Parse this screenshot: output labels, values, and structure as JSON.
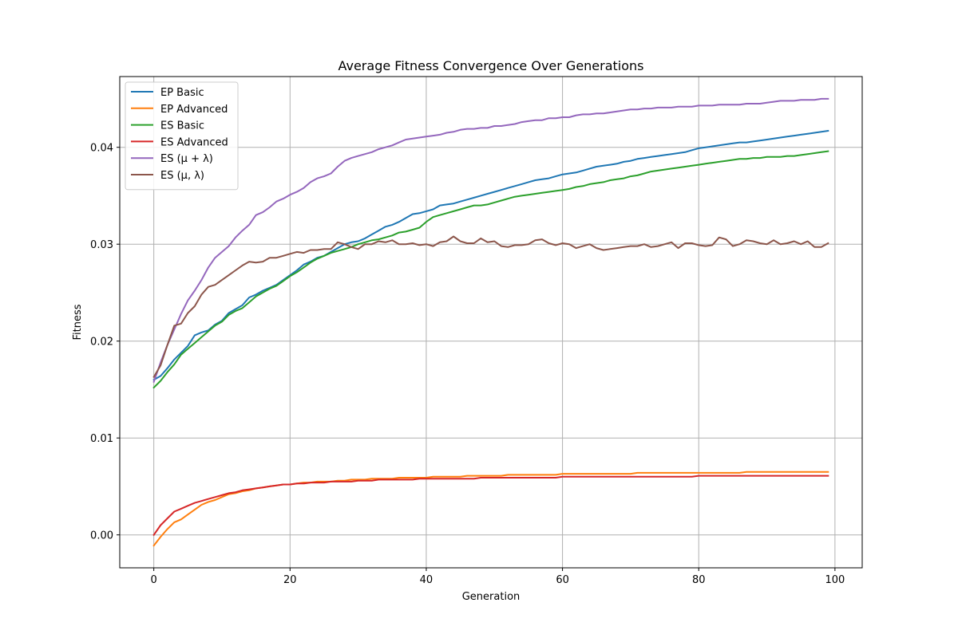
{
  "chart_data": {
    "type": "line",
    "title": "Average Fitness Convergence Over Generations",
    "xlabel": "Generation",
    "ylabel": "Fitness",
    "xlim": [
      -5,
      104
    ],
    "ylim": [
      -0.0034,
      0.0473
    ],
    "xticks": [
      0,
      20,
      40,
      60,
      80,
      100
    ],
    "xtick_labels": [
      "0",
      "20",
      "40",
      "60",
      "80",
      "100"
    ],
    "yticks": [
      0.0,
      0.01,
      0.02,
      0.03,
      0.04
    ],
    "ytick_labels": [
      "0.00",
      "0.01",
      "0.02",
      "0.03",
      "0.04"
    ],
    "grid": true,
    "legend_position": "top-left",
    "x": [
      0,
      1,
      2,
      3,
      4,
      5,
      6,
      7,
      8,
      9,
      10,
      11,
      12,
      13,
      14,
      15,
      16,
      17,
      18,
      19,
      20,
      21,
      22,
      23,
      24,
      25,
      26,
      27,
      28,
      29,
      30,
      31,
      32,
      33,
      34,
      35,
      36,
      37,
      38,
      39,
      40,
      41,
      42,
      43,
      44,
      45,
      46,
      47,
      48,
      49,
      50,
      51,
      52,
      53,
      54,
      55,
      56,
      57,
      58,
      59,
      60,
      61,
      62,
      63,
      64,
      65,
      66,
      67,
      68,
      69,
      70,
      71,
      72,
      73,
      74,
      75,
      76,
      77,
      78,
      79,
      80,
      81,
      82,
      83,
      84,
      85,
      86,
      87,
      88,
      89,
      90,
      91,
      92,
      93,
      94,
      95,
      96,
      97,
      98,
      99
    ],
    "series": [
      {
        "name": "EP Basic",
        "color": "#1f77b4",
        "values": [
          0.016,
          0.0164,
          0.0172,
          0.0181,
          0.0188,
          0.0195,
          0.0206,
          0.0209,
          0.0211,
          0.0217,
          0.0221,
          0.0229,
          0.0233,
          0.0237,
          0.0245,
          0.0248,
          0.0252,
          0.0255,
          0.0258,
          0.0263,
          0.0268,
          0.0273,
          0.0279,
          0.0282,
          0.0286,
          0.0288,
          0.0292,
          0.0296,
          0.03,
          0.0302,
          0.0303,
          0.0306,
          0.031,
          0.0314,
          0.0318,
          0.032,
          0.0323,
          0.0327,
          0.0331,
          0.0332,
          0.0334,
          0.0336,
          0.034,
          0.0341,
          0.0342,
          0.0344,
          0.0346,
          0.0348,
          0.035,
          0.0352,
          0.0354,
          0.0356,
          0.0358,
          0.036,
          0.0362,
          0.0364,
          0.0366,
          0.0367,
          0.0368,
          0.037,
          0.0372,
          0.0373,
          0.0374,
          0.0376,
          0.0378,
          0.038,
          0.0381,
          0.0382,
          0.0383,
          0.0385,
          0.0386,
          0.0388,
          0.0389,
          0.039,
          0.0391,
          0.0392,
          0.0393,
          0.0394,
          0.0395,
          0.0397,
          0.0399,
          0.04,
          0.0401,
          0.0402,
          0.0403,
          0.0404,
          0.0405,
          0.0405,
          0.0406,
          0.0407,
          0.0408,
          0.0409,
          0.041,
          0.0411,
          0.0412,
          0.0413,
          0.0414,
          0.0415,
          0.0416,
          0.0417
        ]
      },
      {
        "name": "EP Advanced",
        "color": "#ff7f0e",
        "values": [
          -0.0011,
          -0.0002,
          0.0006,
          0.0013,
          0.0016,
          0.0021,
          0.0026,
          0.0031,
          0.0034,
          0.0036,
          0.0039,
          0.0042,
          0.0043,
          0.0045,
          0.0046,
          0.0048,
          0.0049,
          0.005,
          0.0051,
          0.0052,
          0.0052,
          0.0053,
          0.0054,
          0.0054,
          0.0055,
          0.0055,
          0.0055,
          0.0056,
          0.0056,
          0.0057,
          0.0057,
          0.0057,
          0.0058,
          0.0058,
          0.0058,
          0.0058,
          0.0059,
          0.0059,
          0.0059,
          0.0059,
          0.0059,
          0.006,
          0.006,
          0.006,
          0.006,
          0.006,
          0.0061,
          0.0061,
          0.0061,
          0.0061,
          0.0061,
          0.0061,
          0.0062,
          0.0062,
          0.0062,
          0.0062,
          0.0062,
          0.0062,
          0.0062,
          0.0062,
          0.0063,
          0.0063,
          0.0063,
          0.0063,
          0.0063,
          0.0063,
          0.0063,
          0.0063,
          0.0063,
          0.0063,
          0.0063,
          0.0064,
          0.0064,
          0.0064,
          0.0064,
          0.0064,
          0.0064,
          0.0064,
          0.0064,
          0.0064,
          0.0064,
          0.0064,
          0.0064,
          0.0064,
          0.0064,
          0.0064,
          0.0064,
          0.0065,
          0.0065,
          0.0065,
          0.0065,
          0.0065,
          0.0065,
          0.0065,
          0.0065,
          0.0065,
          0.0065,
          0.0065,
          0.0065,
          0.0065
        ]
      },
      {
        "name": "ES Basic",
        "color": "#2ca02c",
        "values": [
          0.0152,
          0.0159,
          0.0168,
          0.0176,
          0.0186,
          0.0192,
          0.0198,
          0.0204,
          0.021,
          0.0216,
          0.022,
          0.0227,
          0.0231,
          0.0234,
          0.024,
          0.0246,
          0.025,
          0.0254,
          0.0257,
          0.0262,
          0.0267,
          0.0271,
          0.0276,
          0.0281,
          0.0285,
          0.0288,
          0.0291,
          0.0293,
          0.0295,
          0.0297,
          0.03,
          0.0302,
          0.0304,
          0.0305,
          0.0307,
          0.0309,
          0.0312,
          0.0313,
          0.0315,
          0.0317,
          0.0323,
          0.0328,
          0.033,
          0.0332,
          0.0334,
          0.0336,
          0.0338,
          0.034,
          0.034,
          0.0341,
          0.0343,
          0.0345,
          0.0347,
          0.0349,
          0.035,
          0.0351,
          0.0352,
          0.0353,
          0.0354,
          0.0355,
          0.0356,
          0.0357,
          0.0359,
          0.036,
          0.0362,
          0.0363,
          0.0364,
          0.0366,
          0.0367,
          0.0368,
          0.037,
          0.0371,
          0.0373,
          0.0375,
          0.0376,
          0.0377,
          0.0378,
          0.0379,
          0.038,
          0.0381,
          0.0382,
          0.0383,
          0.0384,
          0.0385,
          0.0386,
          0.0387,
          0.0388,
          0.0388,
          0.0389,
          0.0389,
          0.039,
          0.039,
          0.039,
          0.0391,
          0.0391,
          0.0392,
          0.0393,
          0.0394,
          0.0395,
          0.0396
        ]
      },
      {
        "name": "ES Advanced",
        "color": "#d62728",
        "values": [
          0.0,
          0.001,
          0.0017,
          0.0024,
          0.0027,
          0.003,
          0.0033,
          0.0035,
          0.0037,
          0.0039,
          0.0041,
          0.0043,
          0.0044,
          0.0046,
          0.0047,
          0.0048,
          0.0049,
          0.005,
          0.0051,
          0.0052,
          0.0052,
          0.0053,
          0.0053,
          0.0054,
          0.0054,
          0.0054,
          0.0055,
          0.0055,
          0.0055,
          0.0055,
          0.0056,
          0.0056,
          0.0056,
          0.0057,
          0.0057,
          0.0057,
          0.0057,
          0.0057,
          0.0057,
          0.0058,
          0.0058,
          0.0058,
          0.0058,
          0.0058,
          0.0058,
          0.0058,
          0.0058,
          0.0058,
          0.0059,
          0.0059,
          0.0059,
          0.0059,
          0.0059,
          0.0059,
          0.0059,
          0.0059,
          0.0059,
          0.0059,
          0.0059,
          0.0059,
          0.006,
          0.006,
          0.006,
          0.006,
          0.006,
          0.006,
          0.006,
          0.006,
          0.006,
          0.006,
          0.006,
          0.006,
          0.006,
          0.006,
          0.006,
          0.006,
          0.006,
          0.006,
          0.006,
          0.006,
          0.0061,
          0.0061,
          0.0061,
          0.0061,
          0.0061,
          0.0061,
          0.0061,
          0.0061,
          0.0061,
          0.0061,
          0.0061,
          0.0061,
          0.0061,
          0.0061,
          0.0061,
          0.0061,
          0.0061,
          0.0061,
          0.0061,
          0.0061
        ]
      },
      {
        "name": "ES (μ + λ)",
        "color": "#9467bd",
        "values": [
          0.0158,
          0.0178,
          0.0196,
          0.0212,
          0.0228,
          0.0242,
          0.0252,
          0.0263,
          0.0276,
          0.0286,
          0.0292,
          0.0298,
          0.0307,
          0.0314,
          0.032,
          0.033,
          0.0333,
          0.0338,
          0.0344,
          0.0347,
          0.0351,
          0.0354,
          0.0358,
          0.0364,
          0.0368,
          0.037,
          0.0373,
          0.038,
          0.0386,
          0.0389,
          0.0391,
          0.0393,
          0.0395,
          0.0398,
          0.04,
          0.0402,
          0.0405,
          0.0408,
          0.0409,
          0.041,
          0.0411,
          0.0412,
          0.0413,
          0.0415,
          0.0416,
          0.0418,
          0.0419,
          0.0419,
          0.042,
          0.042,
          0.0422,
          0.0422,
          0.0423,
          0.0424,
          0.0426,
          0.0427,
          0.0428,
          0.0428,
          0.043,
          0.043,
          0.0431,
          0.0431,
          0.0433,
          0.0434,
          0.0434,
          0.0435,
          0.0435,
          0.0436,
          0.0437,
          0.0438,
          0.0439,
          0.0439,
          0.044,
          0.044,
          0.0441,
          0.0441,
          0.0441,
          0.0442,
          0.0442,
          0.0442,
          0.0443,
          0.0443,
          0.0443,
          0.0444,
          0.0444,
          0.0444,
          0.0444,
          0.0445,
          0.0445,
          0.0445,
          0.0446,
          0.0447,
          0.0448,
          0.0448,
          0.0448,
          0.0449,
          0.0449,
          0.0449,
          0.045,
          0.045
        ]
      },
      {
        "name": "ES (μ, λ)",
        "color": "#8c564b",
        "values": [
          0.0163,
          0.0175,
          0.0196,
          0.0216,
          0.0218,
          0.0229,
          0.0236,
          0.0248,
          0.0256,
          0.0258,
          0.0263,
          0.0268,
          0.0273,
          0.0278,
          0.0282,
          0.0281,
          0.0282,
          0.0286,
          0.0286,
          0.0288,
          0.029,
          0.0292,
          0.0291,
          0.0294,
          0.0294,
          0.0295,
          0.0295,
          0.0302,
          0.03,
          0.0297,
          0.0295,
          0.03,
          0.03,
          0.0303,
          0.0302,
          0.0304,
          0.03,
          0.03,
          0.0301,
          0.0299,
          0.03,
          0.0298,
          0.0302,
          0.0303,
          0.0308,
          0.0303,
          0.0301,
          0.0301,
          0.0306,
          0.0302,
          0.0303,
          0.0298,
          0.0297,
          0.0299,
          0.0299,
          0.03,
          0.0304,
          0.0305,
          0.0301,
          0.0299,
          0.0301,
          0.03,
          0.0296,
          0.0298,
          0.03,
          0.0296,
          0.0294,
          0.0295,
          0.0296,
          0.0297,
          0.0298,
          0.0298,
          0.03,
          0.0297,
          0.0298,
          0.03,
          0.0302,
          0.0296,
          0.0301,
          0.0301,
          0.0299,
          0.0298,
          0.0299,
          0.0307,
          0.0305,
          0.0298,
          0.03,
          0.0304,
          0.0303,
          0.0301,
          0.03,
          0.0304,
          0.03,
          0.0301,
          0.0303,
          0.03,
          0.0303,
          0.0297,
          0.0297,
          0.0301
        ]
      }
    ]
  }
}
